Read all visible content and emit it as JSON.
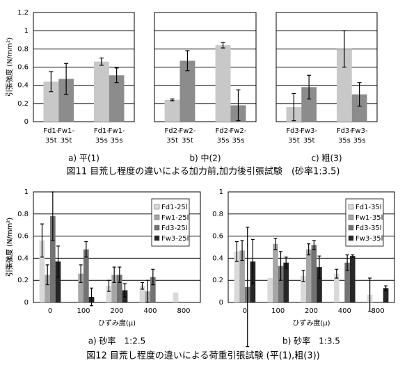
{
  "chart_data": [
    {
      "type": "bar",
      "title": "a) 平(1)",
      "ylabel": "引張強度 (N/mm²)",
      "ytick_labels": true,
      "categories": [
        "Fd1-35t",
        "Fw1-35t",
        "Fd1-35s",
        "Fw1-35s"
      ],
      "values": [
        0.44,
        0.47,
        0.66,
        0.51
      ],
      "errors": [
        0.11,
        0.17,
        0.04,
        0.08
      ],
      "colors": [
        "#c8c8c8",
        "#8c8c8c",
        "#c8c8c8",
        "#8c8c8c"
      ],
      "ylim": [
        0,
        1.2
      ],
      "yticks": [
        0,
        0.2,
        0.4,
        0.6,
        0.8,
        1,
        1.2
      ],
      "grid": true
    },
    {
      "type": "bar",
      "title": "b) 中(2)",
      "ytick_labels": false,
      "categories": [
        "Fd2-35t",
        "Fw2-35t",
        "Fd2-35s",
        "Fw2-35s"
      ],
      "values": [
        0.24,
        0.67,
        0.84,
        0.18
      ],
      "errors": [
        0.01,
        0.11,
        0.03,
        0.17
      ],
      "colors": [
        "#c8c8c8",
        "#8c8c8c",
        "#c8c8c8",
        "#8c8c8c"
      ],
      "ylim": [
        0,
        1.2
      ],
      "yticks": [
        0,
        0.2,
        0.4,
        0.6,
        0.8,
        1,
        1.2
      ],
      "grid": true
    },
    {
      "type": "bar",
      "title": "c) 粗(3)",
      "ytick_labels": false,
      "categories": [
        "Fd3-35t",
        "Fw3-35t",
        "Fd3-35s",
        "Fw3-35s"
      ],
      "values": [
        0.16,
        0.38,
        0.8,
        0.3
      ],
      "errors": [
        0.15,
        0.13,
        0.2,
        0.13
      ],
      "colors": [
        "#c8c8c8",
        "#8c8c8c",
        "#c8c8c8",
        "#8c8c8c"
      ],
      "ylim": [
        0,
        1.2
      ],
      "yticks": [
        0,
        0.2,
        0.4,
        0.6,
        0.8,
        1,
        1.2
      ],
      "grid": true
    },
    {
      "type": "grouped_bar",
      "title": "a) 砂率　1:2.5",
      "ylabel": "引張強度 (N/mm²)",
      "xlabel": "ひずみ度(μ)",
      "ytick_labels": true,
      "categories": [
        "0",
        "100",
        "200",
        "400",
        "800"
      ],
      "series": [
        {
          "name": "Fd1-25l",
          "color": "#d9d9d9",
          "values": [
            0.56,
            null,
            0.15,
            0.15,
            0.09
          ],
          "errors": [
            0.15,
            null,
            0.05,
            0.03,
            null
          ]
        },
        {
          "name": "Fw1-25l",
          "color": "#a6a6a6",
          "values": [
            0.25,
            0.26,
            0.25,
            0.1,
            null
          ],
          "errors": [
            0.09,
            0.08,
            0.07,
            0.1,
            null
          ]
        },
        {
          "name": "Fd3-25l",
          "color": "#737373",
          "values": [
            0.78,
            0.48,
            0.25,
            0.23,
            null
          ],
          "errors": [
            0.22,
            0.07,
            0.07,
            0.07,
            null
          ]
        },
        {
          "name": "Fw3-25l",
          "color": "#262626",
          "values": [
            0.37,
            0.05,
            0.11,
            null,
            null
          ],
          "errors": [
            0.14,
            0.08,
            0.06,
            null,
            null
          ]
        }
      ],
      "ylim": [
        0,
        1
      ],
      "yticks": [
        0,
        0.2,
        0.4,
        0.6,
        0.8,
        1
      ],
      "grid": true,
      "legend": "upper-right"
    },
    {
      "type": "grouped_bar",
      "title": "b) 砂率　1:3.5",
      "ylabel": "引張強度 (N/mm²)",
      "xlabel": "ひずみ度(μ)",
      "ytick_labels": true,
      "categories": [
        "0",
        "100",
        "200",
        "400",
        "800"
      ],
      "series": [
        {
          "name": "Fd1-35l",
          "color": "#d9d9d9",
          "values": [
            0.46,
            0.22,
            0.24,
            0.26,
            0.07
          ],
          "errors": [
            0.09,
            null,
            0.05,
            0.04,
            0.15
          ]
        },
        {
          "name": "Fw1-35l",
          "color": "#a6a6a6",
          "values": [
            0.47,
            0.53,
            0.48,
            null,
            null
          ],
          "errors": [
            0.09,
            0.05,
            0.05,
            null,
            null
          ]
        },
        {
          "name": "Fd3-35l",
          "color": "#737373",
          "values": [
            0.14,
            0.33,
            0.52,
            0.36,
            null
          ],
          "errors": [
            0.54,
            0.13,
            0.04,
            0.07,
            null
          ]
        },
        {
          "name": "Fw3-35l",
          "color": "#262626",
          "values": [
            0.37,
            0.36,
            0.32,
            0.42,
            0.13
          ],
          "errors": [
            0.2,
            0.05,
            0.1,
            0.01,
            0.02
          ]
        }
      ],
      "ylim": [
        0,
        1
      ],
      "yticks": [
        0,
        0.2,
        0.4,
        0.6,
        0.8,
        1
      ],
      "grid": true,
      "legend": "upper-right"
    }
  ],
  "figures": [
    {
      "caption": "図11 目荒し程度の違いによる加力前,加力後引張試験　(砂率1:3.5)"
    },
    {
      "caption": "図12 目荒し程度の違いによる荷重引張試験 (平(1),粗(3))"
    }
  ]
}
